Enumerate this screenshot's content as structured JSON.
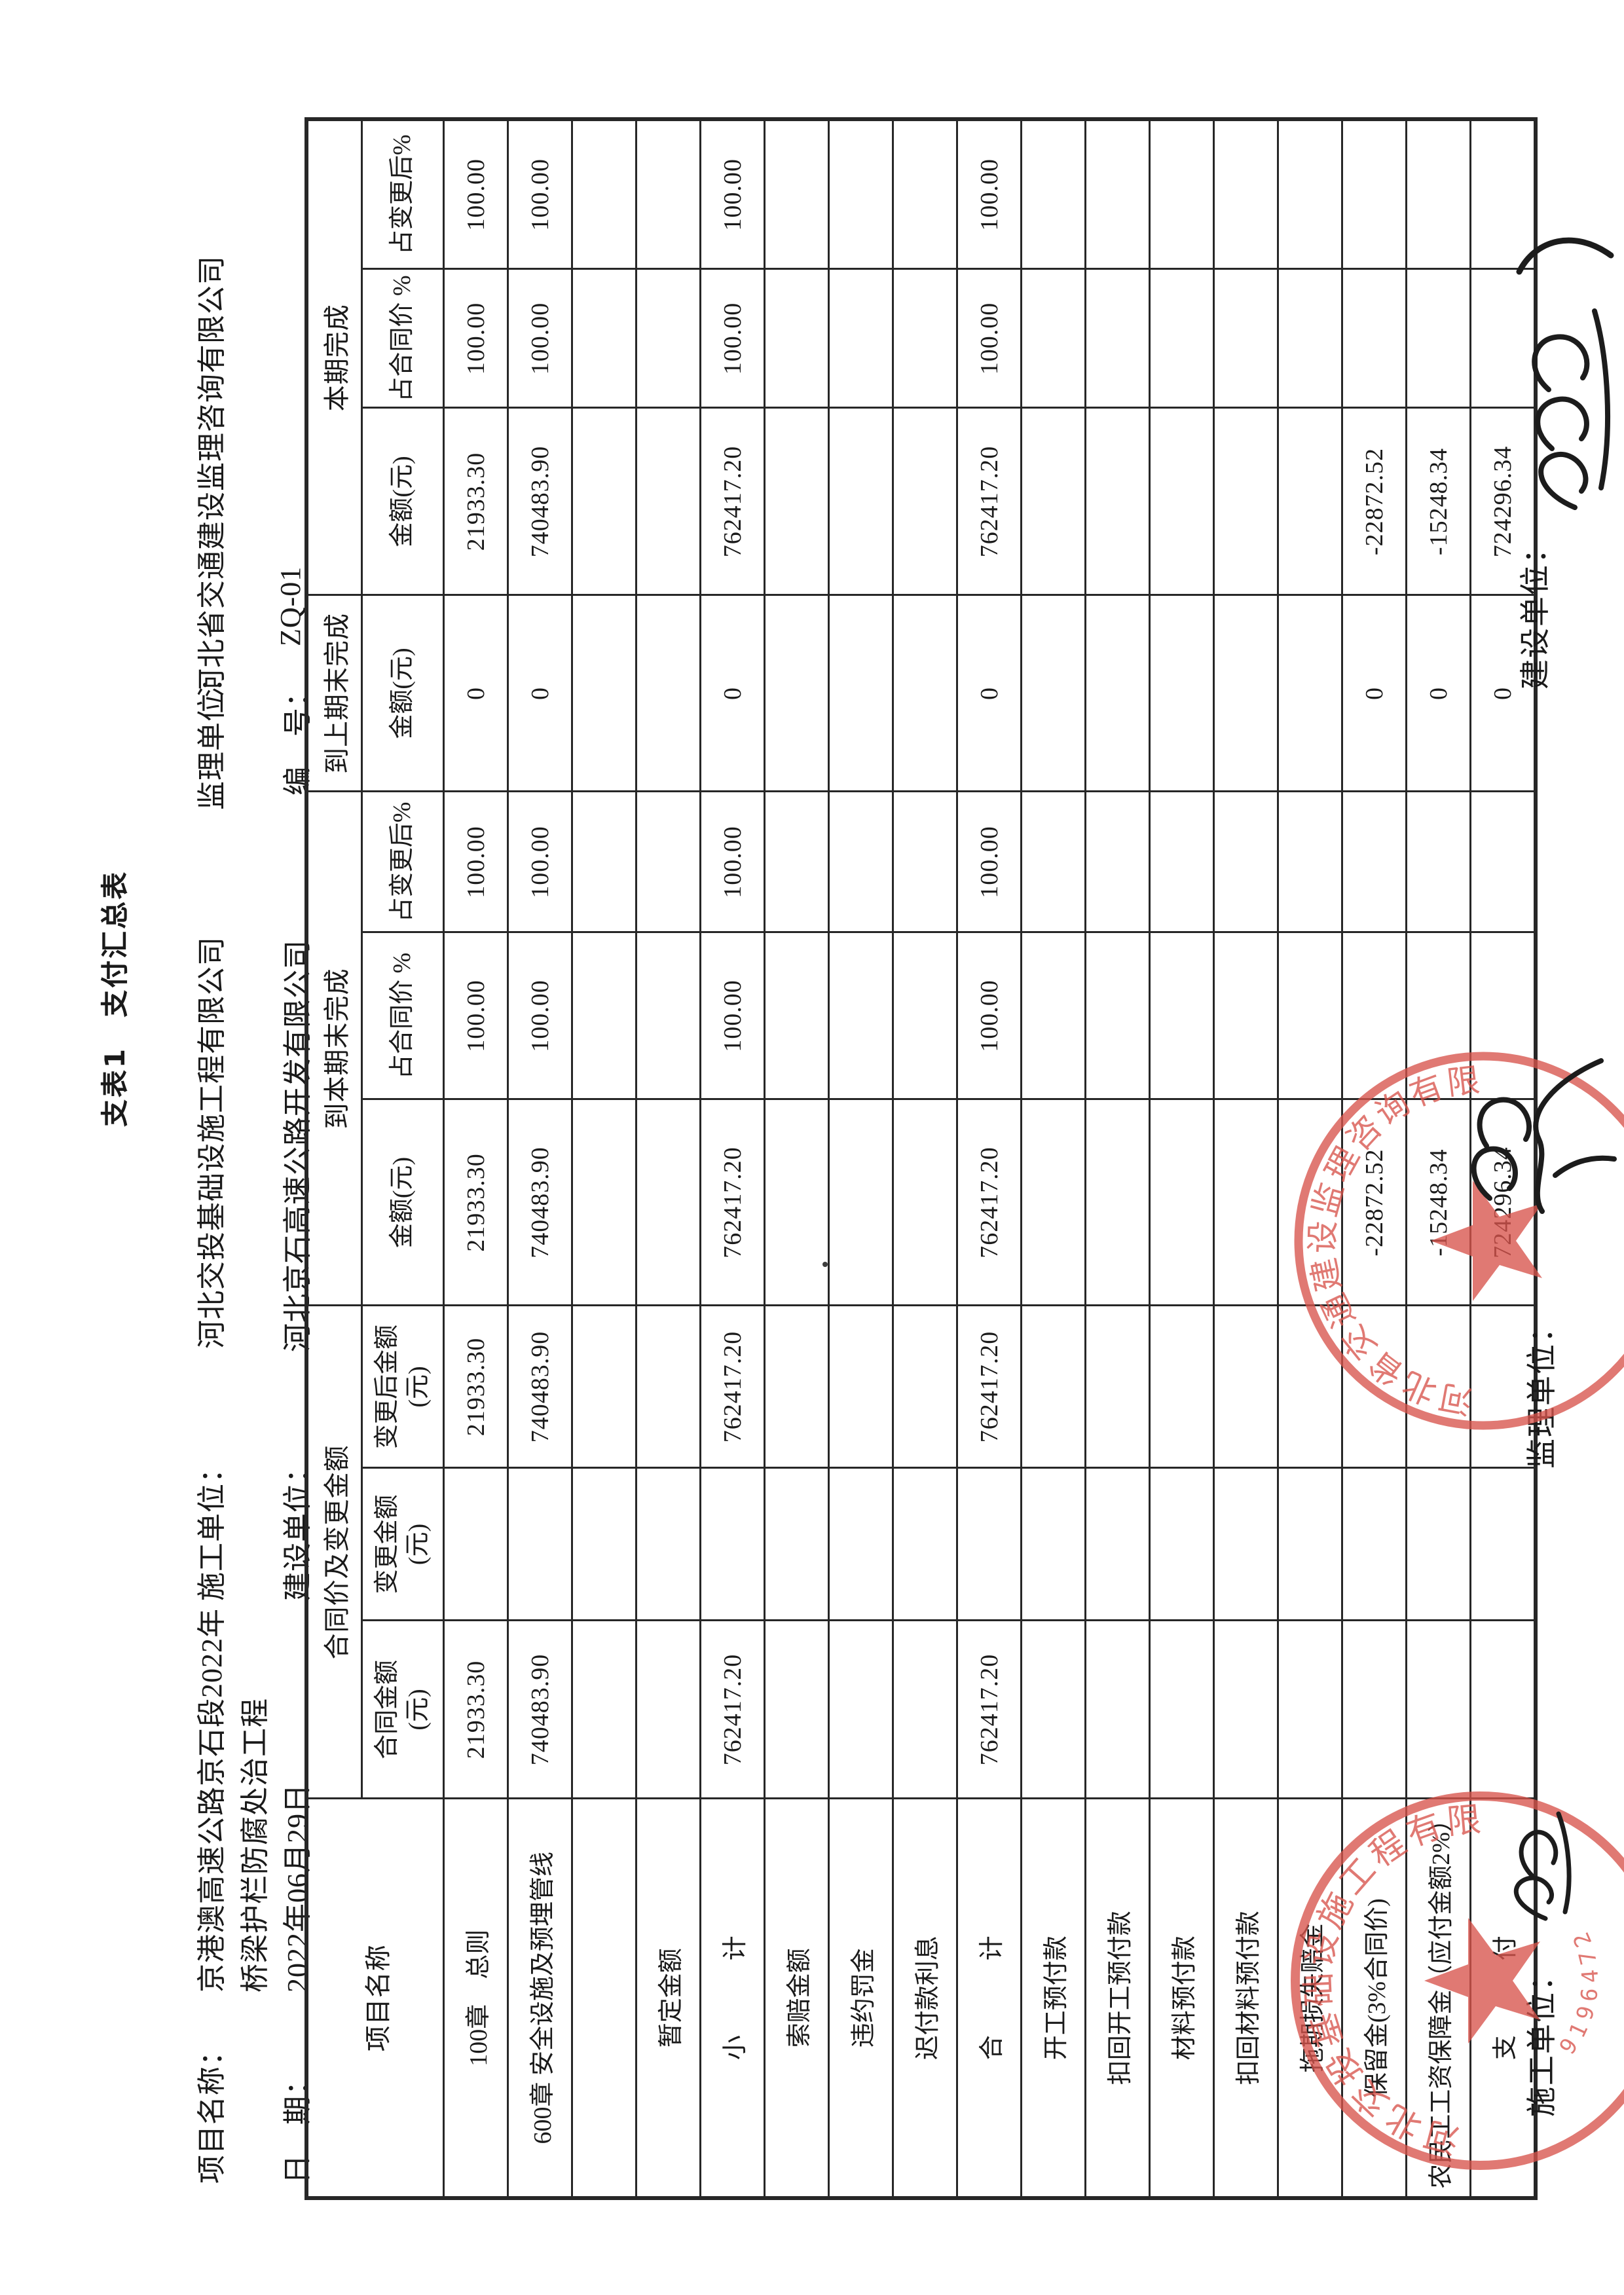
{
  "title": "支表1　支付汇总表",
  "meta": {
    "project_label": "项目名称：",
    "project_value_line1": "京港澳高速公路京石段2022年",
    "project_value_line2": "桥梁护栏防腐处治工程",
    "date_label": "日　期：",
    "date_value": "2022年06月29日",
    "contractor_label": "施工单位：",
    "contractor_value": "河北交投基础设施工程有限公司",
    "client_label": "建设单位：",
    "client_value": "河北京石高速公路开发有限公司",
    "supervisor_label": "监理单位：",
    "supervisor_value": "河北省交通建设监理咨询有限公司",
    "number_label": "编　号：",
    "number_value": "ZQ-01"
  },
  "table": {
    "header": {
      "project": "项目名称",
      "group_contract": "合同价及变更金额",
      "group_todate": "到本期末完成",
      "group_prev": "到上期末完成",
      "group_current": "本期完成",
      "sub_contract_amount": "合同金额\n(元)",
      "sub_change_amount": "变更金额\n(元)",
      "sub_after_change": "变更后金额\n(元)",
      "sub_amount": "金额(元)",
      "sub_pct_contract": "占合同价 %",
      "sub_pct_change": "占变更后%"
    },
    "rows": [
      {
        "label": "100章　总则",
        "values": [
          "21933.30",
          "",
          "21933.30",
          "21933.30",
          "100.00",
          "100.00",
          "0",
          "21933.30",
          "100.00",
          "100.00"
        ]
      },
      {
        "label": "600章 安全设施及预埋管线",
        "values": [
          "740483.90",
          "",
          "740483.90",
          "740483.90",
          "100.00",
          "100.00",
          "0",
          "740483.90",
          "100.00",
          "100.00"
        ]
      },
      {
        "label": "",
        "values": [
          "",
          "",
          "",
          "",
          "",
          "",
          "",
          "",
          "",
          ""
        ]
      },
      {
        "label": "暂定金额",
        "values": [
          "",
          "",
          "",
          "",
          "",
          "",
          "",
          "",
          "",
          ""
        ]
      },
      {
        "label": "小　　　计",
        "values": [
          "762417.20",
          "",
          "762417.20",
          "762417.20",
          "100.00",
          "100.00",
          "0",
          "762417.20",
          "100.00",
          "100.00"
        ]
      },
      {
        "label": "索赔金额",
        "values": [
          "",
          "",
          "",
          "",
          "",
          "",
          "",
          "",
          "",
          ""
        ]
      },
      {
        "label": "违约罚金",
        "values": [
          "",
          "",
          "",
          "",
          "",
          "",
          "",
          "",
          "",
          ""
        ]
      },
      {
        "label": "迟付款利息",
        "values": [
          "",
          "",
          "",
          "",
          "",
          "",
          "",
          "",
          "",
          ""
        ]
      },
      {
        "label": "合　　　计",
        "values": [
          "762417.20",
          "",
          "762417.20",
          "762417.20",
          "100.00",
          "100.00",
          "0",
          "762417.20",
          "100.00",
          "100.00"
        ]
      },
      {
        "label": "开工预付款",
        "values": [
          "",
          "",
          "",
          "",
          "",
          "",
          "",
          "",
          "",
          ""
        ]
      },
      {
        "label": "扣回开工预付款",
        "values": [
          "",
          "",
          "",
          "",
          "",
          "",
          "",
          "",
          "",
          ""
        ]
      },
      {
        "label": "材料预付款",
        "values": [
          "",
          "",
          "",
          "",
          "",
          "",
          "",
          "",
          "",
          ""
        ]
      },
      {
        "label": "扣回材料预付款",
        "values": [
          "",
          "",
          "",
          "",
          "",
          "",
          "",
          "",
          "",
          ""
        ]
      },
      {
        "label": "拖期损失赔金",
        "values": [
          "",
          "",
          "",
          "",
          "",
          "",
          "",
          "",
          "",
          ""
        ]
      },
      {
        "label": "保留金(3%合同价)",
        "values": [
          "",
          "",
          "",
          "-22872.52",
          "",
          "",
          "0",
          "-22872.52",
          "",
          ""
        ]
      },
      {
        "label": "农民工工资保障金（应付金额2%）",
        "values": [
          "",
          "",
          "",
          "-15248.34",
          "",
          "",
          "0",
          "-15248.34",
          "",
          ""
        ]
      },
      {
        "label": "支　　　付",
        "values": [
          "",
          "",
          "",
          "724296.34",
          "",
          "",
          "0",
          "724296.34",
          "",
          ""
        ]
      }
    ]
  },
  "footer": {
    "contractor_label": "施工单位：",
    "supervisor_label": "监理单位：",
    "client_label": "建设单位："
  },
  "stamps": {
    "contractor_company": "河北交投基础设施工程有限公司",
    "contractor_serial": "9196472",
    "supervisor_company": "河北省交通建设监理咨询有限公司"
  },
  "colors": {
    "stamp_red": "#d8544c",
    "ink": "#1c1c1c",
    "line": "#272727"
  }
}
